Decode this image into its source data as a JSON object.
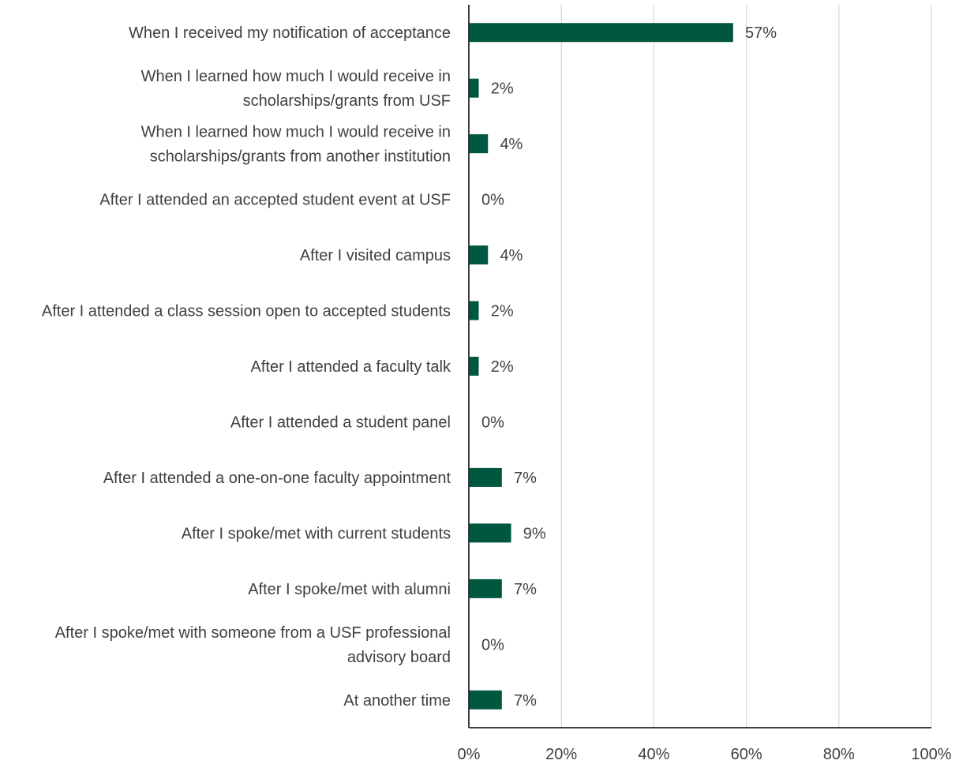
{
  "chart_data": {
    "type": "bar",
    "orientation": "horizontal",
    "categories": [
      [
        "When I received my notification of acceptance"
      ],
      [
        "When I learned how much I would receive in",
        "scholarships/grants from USF"
      ],
      [
        "When I learned how much I would receive in",
        "scholarships/grants from another institution"
      ],
      [
        "After I attended an accepted student event at USF"
      ],
      [
        "After I visited campus"
      ],
      [
        "After I attended a class session open to accepted students"
      ],
      [
        "After I attended a faculty talk"
      ],
      [
        "After I attended a student panel"
      ],
      [
        "After I attended a one-on-one faculty appointment"
      ],
      [
        "After I spoke/met with current students"
      ],
      [
        "After I spoke/met with alumni"
      ],
      [
        "After I spoke/met with someone from a USF professional",
        "advisory board"
      ],
      [
        "At another time"
      ]
    ],
    "values": [
      57,
      2,
      4,
      0,
      4,
      2,
      2,
      0,
      7,
      9,
      7,
      0,
      7
    ],
    "value_labels": [
      "57%",
      "2%",
      "4%",
      "0%",
      "4%",
      "2%",
      "2%",
      "0%",
      "7%",
      "9%",
      "7%",
      "0%",
      "7%"
    ],
    "xlim": [
      0,
      100
    ],
    "xticks": [
      0,
      20,
      40,
      60,
      80,
      100
    ],
    "xtick_labels": [
      "0%",
      "20%",
      "40%",
      "60%",
      "80%",
      "100%"
    ],
    "grid": "vertical",
    "colors": {
      "bar": "#00573F",
      "grid": "#d9d9d9",
      "axis": "#000000",
      "text": "#404040"
    }
  }
}
